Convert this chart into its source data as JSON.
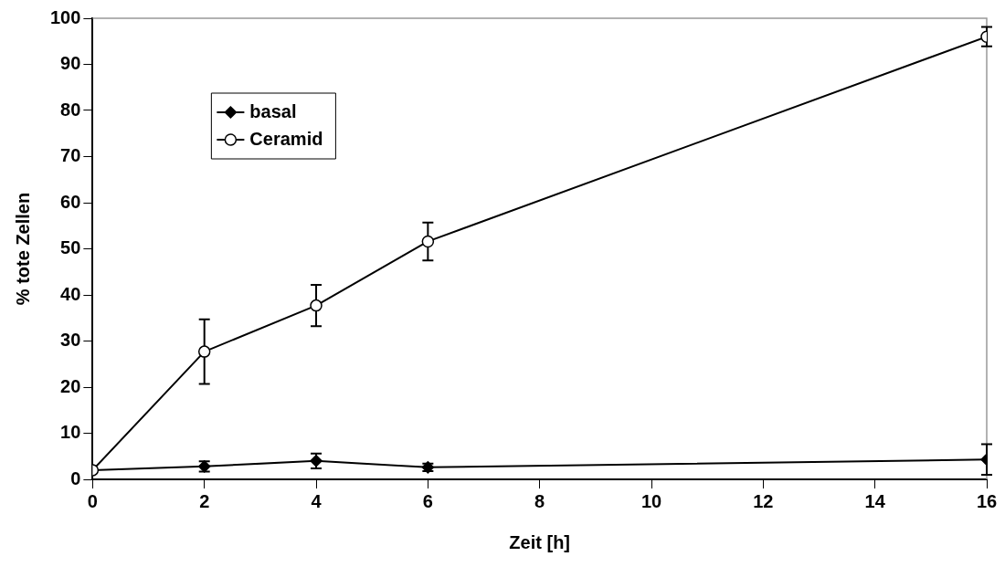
{
  "chart_data": {
    "type": "line",
    "xlabel": "Zeit [h]",
    "ylabel": "% tote Zellen",
    "x": [
      0,
      2,
      4,
      6,
      16
    ],
    "xlim": [
      0,
      16
    ],
    "xticks": [
      0,
      2,
      4,
      6,
      8,
      10,
      12,
      14,
      16
    ],
    "ylim": [
      0,
      100
    ],
    "yticks": [
      0,
      10,
      20,
      30,
      40,
      50,
      60,
      70,
      80,
      90,
      100
    ],
    "grid": false,
    "legend": "top left",
    "series": [
      {
        "name": "basal",
        "color": "#000000",
        "marker": "diamond",
        "values": [
          2,
          2.8,
          4,
          2.6,
          4.3
        ],
        "errors": [
          null,
          1.1,
          1.6,
          0.8,
          3.3
        ]
      },
      {
        "name": "Ceramid",
        "color": "#000000",
        "marker": "circle",
        "values": [
          2,
          27.7,
          37.7,
          51.6,
          96
        ],
        "errors": [
          null,
          7,
          4.5,
          4.1,
          2.1
        ]
      }
    ]
  }
}
